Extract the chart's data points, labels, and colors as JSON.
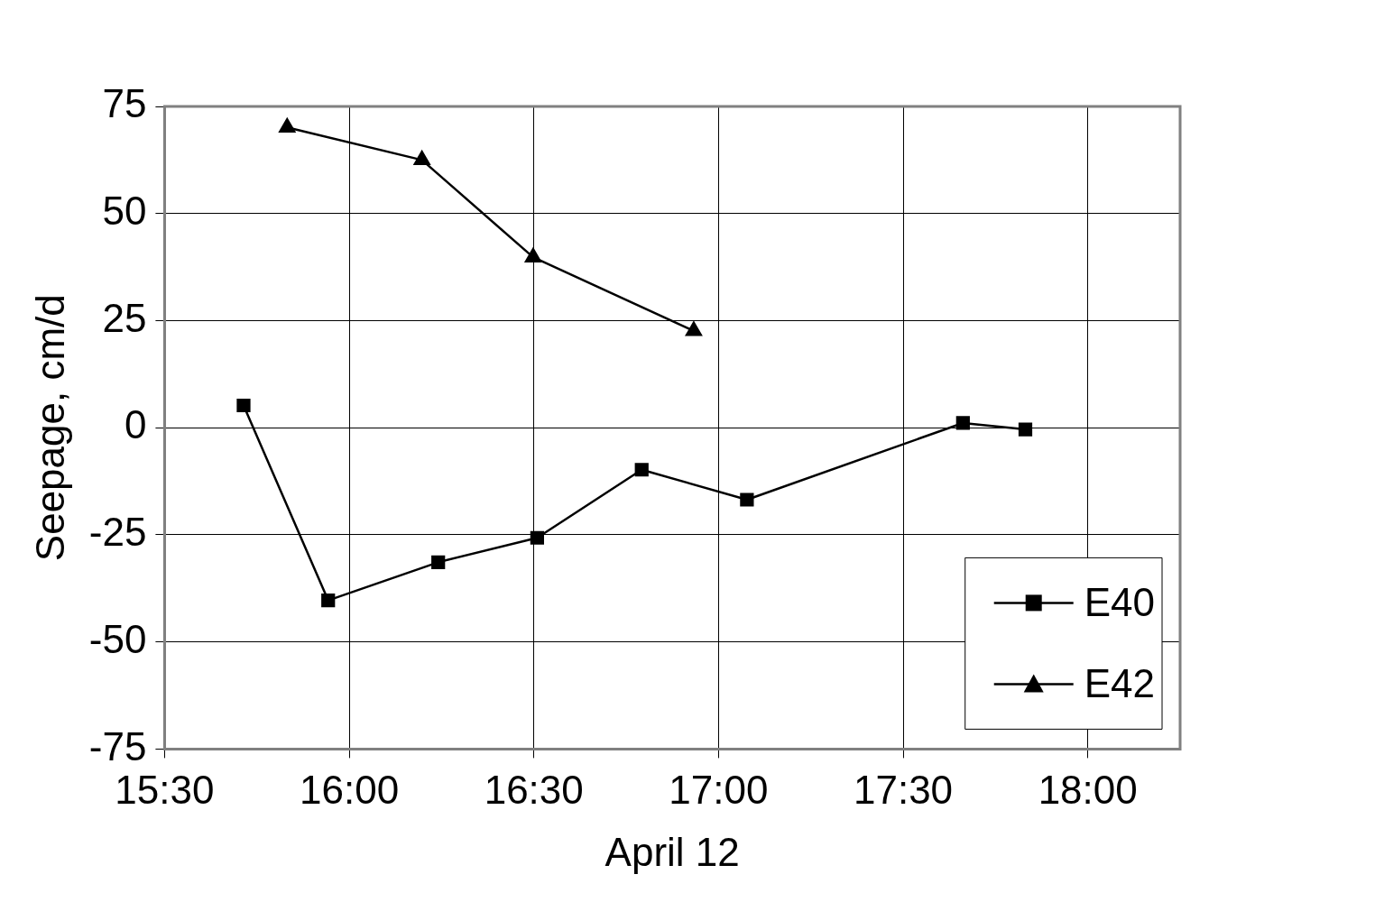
{
  "chart_data": {
    "type": "line",
    "xlabel": "April 12",
    "ylabel": "Seepage, cm/d",
    "xlim": [
      15.5,
      18.25
    ],
    "xticks": [
      {
        "value": 15.5,
        "label": "15:30"
      },
      {
        "value": 16,
        "label": "16:00"
      },
      {
        "value": 16.5,
        "label": "16:30"
      },
      {
        "value": 17,
        "label": "17:00"
      },
      {
        "value": 17.5,
        "label": "17:30"
      },
      {
        "value": 18,
        "label": "18:00"
      }
    ],
    "ylim": [
      -75,
      75
    ],
    "yticks": [
      -75,
      -50,
      -25,
      0,
      25,
      50,
      75
    ],
    "grid": true,
    "legend": "bottom right",
    "line_style": "solid",
    "series": [
      {
        "name": "E40",
        "color": "#000000",
        "marker": "square",
        "x": [
          15.714,
          15.943,
          16.241,
          16.509,
          16.792,
          17.077,
          17.662,
          17.831
        ],
        "values": [
          5.2,
          -40.3,
          -31.4,
          -25.7,
          -9.8,
          -16.8,
          1.1,
          -0.4
        ]
      },
      {
        "name": "E42",
        "color": "#000000",
        "marker": "triangle",
        "x": [
          15.832,
          16.197,
          16.498,
          16.933
        ],
        "values": [
          70.1,
          62.5,
          39.8,
          22.6
        ]
      }
    ]
  }
}
